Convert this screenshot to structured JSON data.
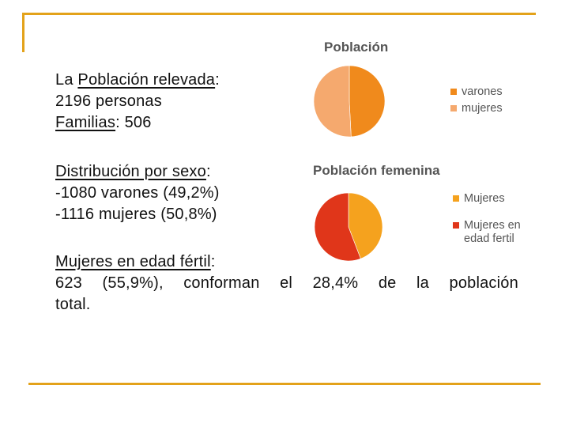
{
  "text": {
    "poblacion_label": "La Población relevada",
    "poblacion_colon": ":",
    "personas": "2196 personas",
    "familias_label": "Familias",
    "familias_value": ": 506",
    "sexo_label": "Distribución por sexo",
    "sexo_colon": ":",
    "varones_line": "-1080 varones (49,2%)",
    "mujeres_line": "-1116 mujeres (50,8%)",
    "fertil_label": "Mujeres en edad fértil",
    "fertil_colon": ":",
    "fertil_words": [
      "623",
      "(55,9%),",
      "conforman",
      "el",
      "28,4%",
      "de",
      "la",
      "población"
    ],
    "fertil_end": "total."
  },
  "colors": {
    "accent": "#e3a21a",
    "varones": "#f08a1c",
    "mujeres": "#f5a96e",
    "mujeres2": "#f5a21e",
    "fertil": "#e0361a"
  },
  "chart_data": [
    {
      "type": "pie",
      "title": "Población",
      "categories": [
        "varones",
        "mujeres"
      ],
      "values": [
        1080,
        1116
      ],
      "legend_position": "right"
    },
    {
      "type": "pie",
      "title": "Población femenina",
      "categories": [
        "Mujeres",
        "Mujeres en edad fertil"
      ],
      "values": [
        493,
        623
      ],
      "legend_position": "right"
    }
  ]
}
